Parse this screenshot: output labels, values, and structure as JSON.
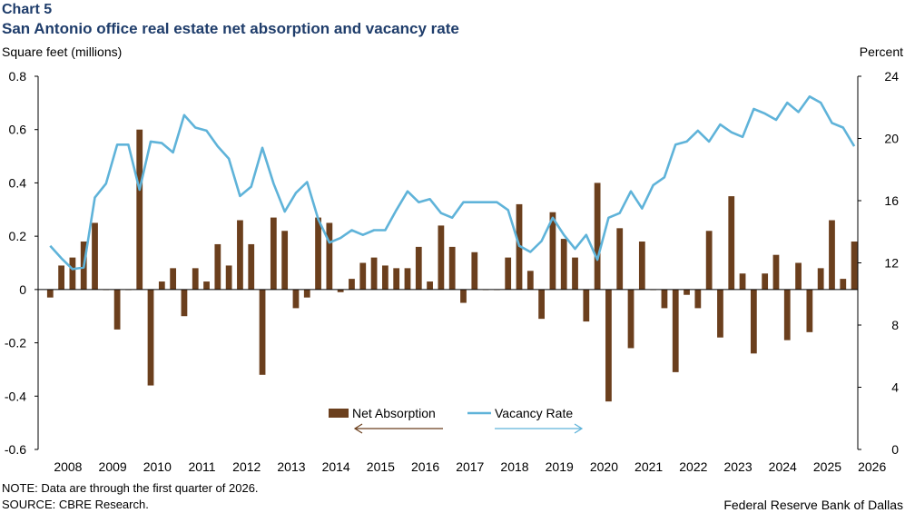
{
  "header": {
    "chart_number": "Chart 5",
    "title": "San Antonio office real estate net absorption and vacancy rate"
  },
  "footer": {
    "note": "NOTE: Data are through the first quarter of 2026.",
    "source": "SOURCE: CBRE Research.",
    "credit": "Federal Reserve Bank of Dallas"
  },
  "colors": {
    "bar": "#6b3f1d",
    "line": "#5fb3d9",
    "title": "#1f3d6b",
    "axis": "#000000"
  },
  "chart_data": {
    "type": "bar+line",
    "ylabel_left": "Square feet (millions)",
    "ylabel_right": "Percent",
    "ylim_left": [
      -0.6,
      0.8
    ],
    "ylim_right": [
      0,
      24
    ],
    "yticks_left": [
      "0.8",
      "0.6",
      "0.4",
      "0.2",
      "0",
      "-0.2",
      "-0.4",
      "-0.6"
    ],
    "yticks_right": [
      "24",
      "20",
      "16",
      "12",
      "8",
      "4",
      "0"
    ],
    "xticks": [
      "2008",
      "2009",
      "2010",
      "2011",
      "2012",
      "2013",
      "2014",
      "2015",
      "2016",
      "2017",
      "2018",
      "2019",
      "2020",
      "2021",
      "2022",
      "2023",
      "2024",
      "2025",
      "2026"
    ],
    "legend": {
      "bar": "Net Absorption",
      "line": "Vacancy Rate"
    },
    "start_year": 2008,
    "series": [
      {
        "name": "Net Absorption",
        "type": "bar",
        "axis": "left",
        "values": [
          -0.03,
          0.09,
          0.12,
          0.18,
          0.25,
          0.0,
          -0.15,
          0.0,
          0.6,
          -0.36,
          0.03,
          0.08,
          -0.1,
          0.08,
          0.03,
          0.17,
          0.09,
          0.26,
          0.17,
          -0.32,
          0.27,
          0.22,
          -0.07,
          -0.03,
          0.27,
          0.25,
          -0.01,
          0.04,
          0.1,
          0.12,
          0.09,
          0.08,
          0.08,
          0.16,
          0.03,
          0.24,
          0.16,
          -0.05,
          0.14,
          0.0,
          0.0,
          0.12,
          0.32,
          0.07,
          -0.11,
          0.29,
          0.19,
          0.12,
          -0.12,
          0.4,
          -0.42,
          0.23,
          -0.22,
          0.18,
          0.0,
          -0.07,
          -0.31,
          -0.02,
          -0.07,
          0.22,
          -0.18,
          0.35,
          0.06,
          -0.24,
          0.06,
          0.13,
          -0.19,
          0.1,
          -0.16,
          0.08,
          0.26,
          0.04,
          0.18
        ]
      },
      {
        "name": "Vacancy Rate",
        "type": "line",
        "axis": "right",
        "values": [
          13.1,
          12.3,
          11.6,
          11.7,
          16.2,
          17.1,
          19.6,
          19.6,
          16.7,
          19.8,
          19.7,
          19.1,
          21.5,
          20.7,
          20.5,
          19.5,
          18.7,
          16.3,
          16.9,
          19.4,
          17.1,
          15.3,
          16.5,
          17.2,
          14.8,
          13.3,
          13.6,
          14.1,
          13.8,
          14.1,
          14.1,
          15.4,
          16.6,
          15.9,
          16.1,
          15.2,
          14.9,
          15.9,
          15.9,
          15.9,
          15.9,
          15.4,
          13.1,
          12.7,
          13.4,
          14.9,
          13.8,
          12.9,
          13.8,
          12.2,
          14.9,
          15.2,
          16.6,
          15.5,
          17.0,
          17.5,
          19.6,
          19.8,
          20.5,
          19.8,
          20.9,
          20.4,
          20.1,
          21.9,
          21.6,
          21.2,
          22.3,
          21.7,
          22.7,
          22.3,
          21.0,
          20.7,
          19.5
        ]
      }
    ]
  }
}
